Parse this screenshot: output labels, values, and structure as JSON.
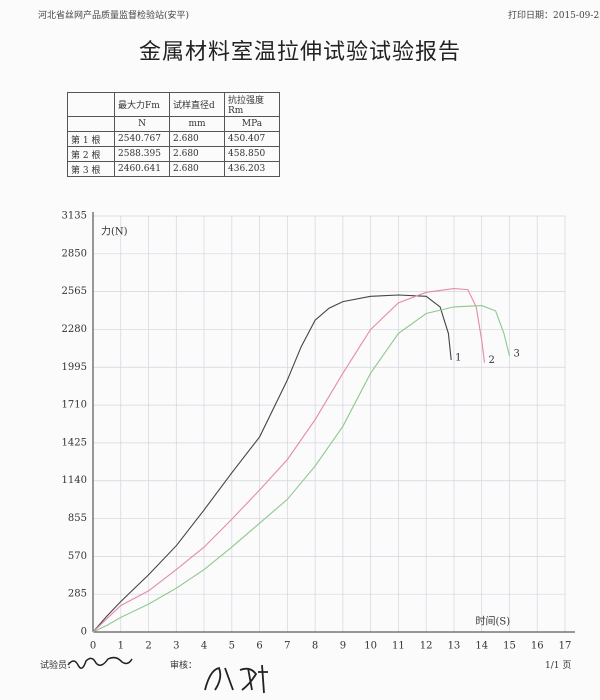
{
  "header": {
    "organization": "河北省丝网产品质量监督检验站(安平)",
    "print_date": "打印日期：2015-09-2"
  },
  "title": "金属材料室温拉伸试验试验报告",
  "table": {
    "header": [
      "",
      "最大力Fm",
      "试样直径d",
      "抗拉强度Rm"
    ],
    "units": [
      "",
      "N",
      "mm",
      "MPa"
    ],
    "rows": [
      [
        "第 1 根",
        "2540.767",
        "2.680",
        "450.407"
      ],
      [
        "第 2 根",
        "2588.395",
        "2.680",
        "458.850"
      ],
      [
        "第 3 根",
        "2460.641",
        "2.680",
        "436.203"
      ]
    ]
  },
  "chart_data": {
    "type": "line",
    "y_label": "力(N)",
    "x_label": "时间(S)",
    "xlim": [
      0,
      17
    ],
    "xticks": [
      0,
      1,
      2,
      3,
      4,
      5,
      6,
      7,
      8,
      9,
      10,
      11,
      12,
      13,
      14,
      15,
      16,
      17
    ],
    "ylim": [
      0,
      3135
    ],
    "yticks": [
      0,
      285,
      570,
      855,
      1140,
      1425,
      1710,
      1995,
      2280,
      2565,
      2850,
      3135
    ],
    "grid": true,
    "series": [
      {
        "name": "1",
        "color": "#444444",
        "x": [
          0,
          0.5,
          1,
          2,
          3,
          4,
          5,
          6,
          7,
          7.5,
          8,
          8.5,
          9,
          10,
          11,
          12,
          12.5,
          12.8,
          12.9
        ],
        "values": [
          0,
          120,
          230,
          430,
          650,
          920,
          1200,
          1470,
          1900,
          2150,
          2350,
          2440,
          2490,
          2530,
          2540,
          2530,
          2450,
          2250,
          2050
        ]
      },
      {
        "name": "2",
        "color": "#e58aa8",
        "x": [
          0,
          0.5,
          1,
          2,
          3,
          4,
          5,
          6,
          7,
          8,
          9,
          10,
          11,
          12,
          13,
          13.5,
          13.8,
          14,
          14.1
        ],
        "values": [
          0,
          100,
          200,
          310,
          470,
          640,
          850,
          1070,
          1300,
          1600,
          1950,
          2280,
          2480,
          2560,
          2588,
          2580,
          2450,
          2200,
          2030
        ]
      },
      {
        "name": "3",
        "color": "#8cc98c",
        "x": [
          0,
          0.5,
          1,
          2,
          3,
          4,
          5,
          6,
          7,
          8,
          9,
          10,
          11,
          12,
          13,
          14,
          14.5,
          14.8,
          15
        ],
        "values": [
          0,
          50,
          110,
          210,
          330,
          470,
          640,
          820,
          1000,
          1250,
          1550,
          1950,
          2250,
          2400,
          2450,
          2460,
          2420,
          2250,
          2080
        ]
      }
    ]
  },
  "footer": {
    "tester": "试验员：",
    "reviewer": "审核：",
    "page": "1/1 页"
  }
}
